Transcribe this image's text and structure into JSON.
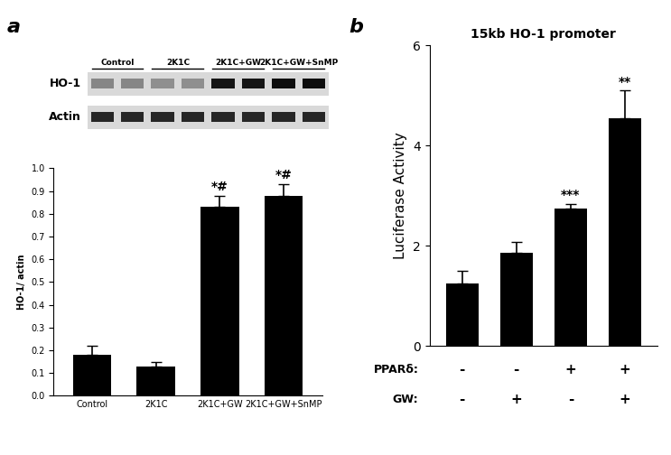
{
  "chart_data": [
    {
      "type": "bar",
      "panel_label": "a",
      "categories": [
        "Control",
        "2K1C",
        "2K1C+GW",
        "2K1C+GW+SnMP"
      ],
      "values": [
        0.18,
        0.13,
        0.83,
        0.88
      ],
      "errors": [
        0.04,
        0.02,
        0.05,
        0.05
      ],
      "color": "#000000",
      "y_label": "HO-1/ actin",
      "ylim": [
        0,
        1.0
      ],
      "yticks": [
        {
          "value": 0,
          "label": "0.0"
        },
        {
          "value": 0.1,
          "label": "0.1"
        },
        {
          "value": 0.2,
          "label": "0.2"
        },
        {
          "value": 0.3,
          "label": "0.3"
        },
        {
          "value": 0.4,
          "label": "0.4"
        },
        {
          "value": 0.5,
          "label": "0.5"
        },
        {
          "value": 0.6,
          "label": "0.6"
        },
        {
          "value": 0.7,
          "label": "0.7"
        },
        {
          "value": 0.8,
          "label": "0.8"
        },
        {
          "value": 0.9,
          "label": "0.9"
        },
        {
          "value": 1.0,
          "label": "1.0"
        }
      ],
      "annotations": [
        {
          "index": 2,
          "text": "*#"
        },
        {
          "index": 3,
          "text": "*#"
        }
      ]
    },
    {
      "type": "bar",
      "panel_label": "b",
      "title": "15kb HO-1 promoter",
      "categories": [
        null,
        null,
        null,
        null
      ],
      "values": [
        1.25,
        1.85,
        2.75,
        4.55
      ],
      "errors": [
        0.25,
        0.22,
        0.08,
        0.55
      ],
      "color": "#000000",
      "y_label": "Luciferase Activity",
      "ylim": [
        0,
        6
      ],
      "yticks": [
        0,
        2,
        4,
        6
      ],
      "annotations": [
        {
          "index": 2,
          "text": "***"
        },
        {
          "index": 3,
          "text": "**"
        }
      ],
      "conditions": [
        {
          "label": "PPARδ:",
          "values": [
            "-",
            "-",
            "+",
            "+"
          ]
        },
        {
          "label": "GW:",
          "values": [
            "-",
            "+",
            "-",
            "+"
          ]
        }
      ]
    }
  ],
  "blot": {
    "row_labels": [
      "HO-1",
      "Actin"
    ],
    "lane_labels": [
      "Control",
      "2K1C",
      "2K1C+GW",
      "2K1C+GW+SnMP"
    ]
  }
}
